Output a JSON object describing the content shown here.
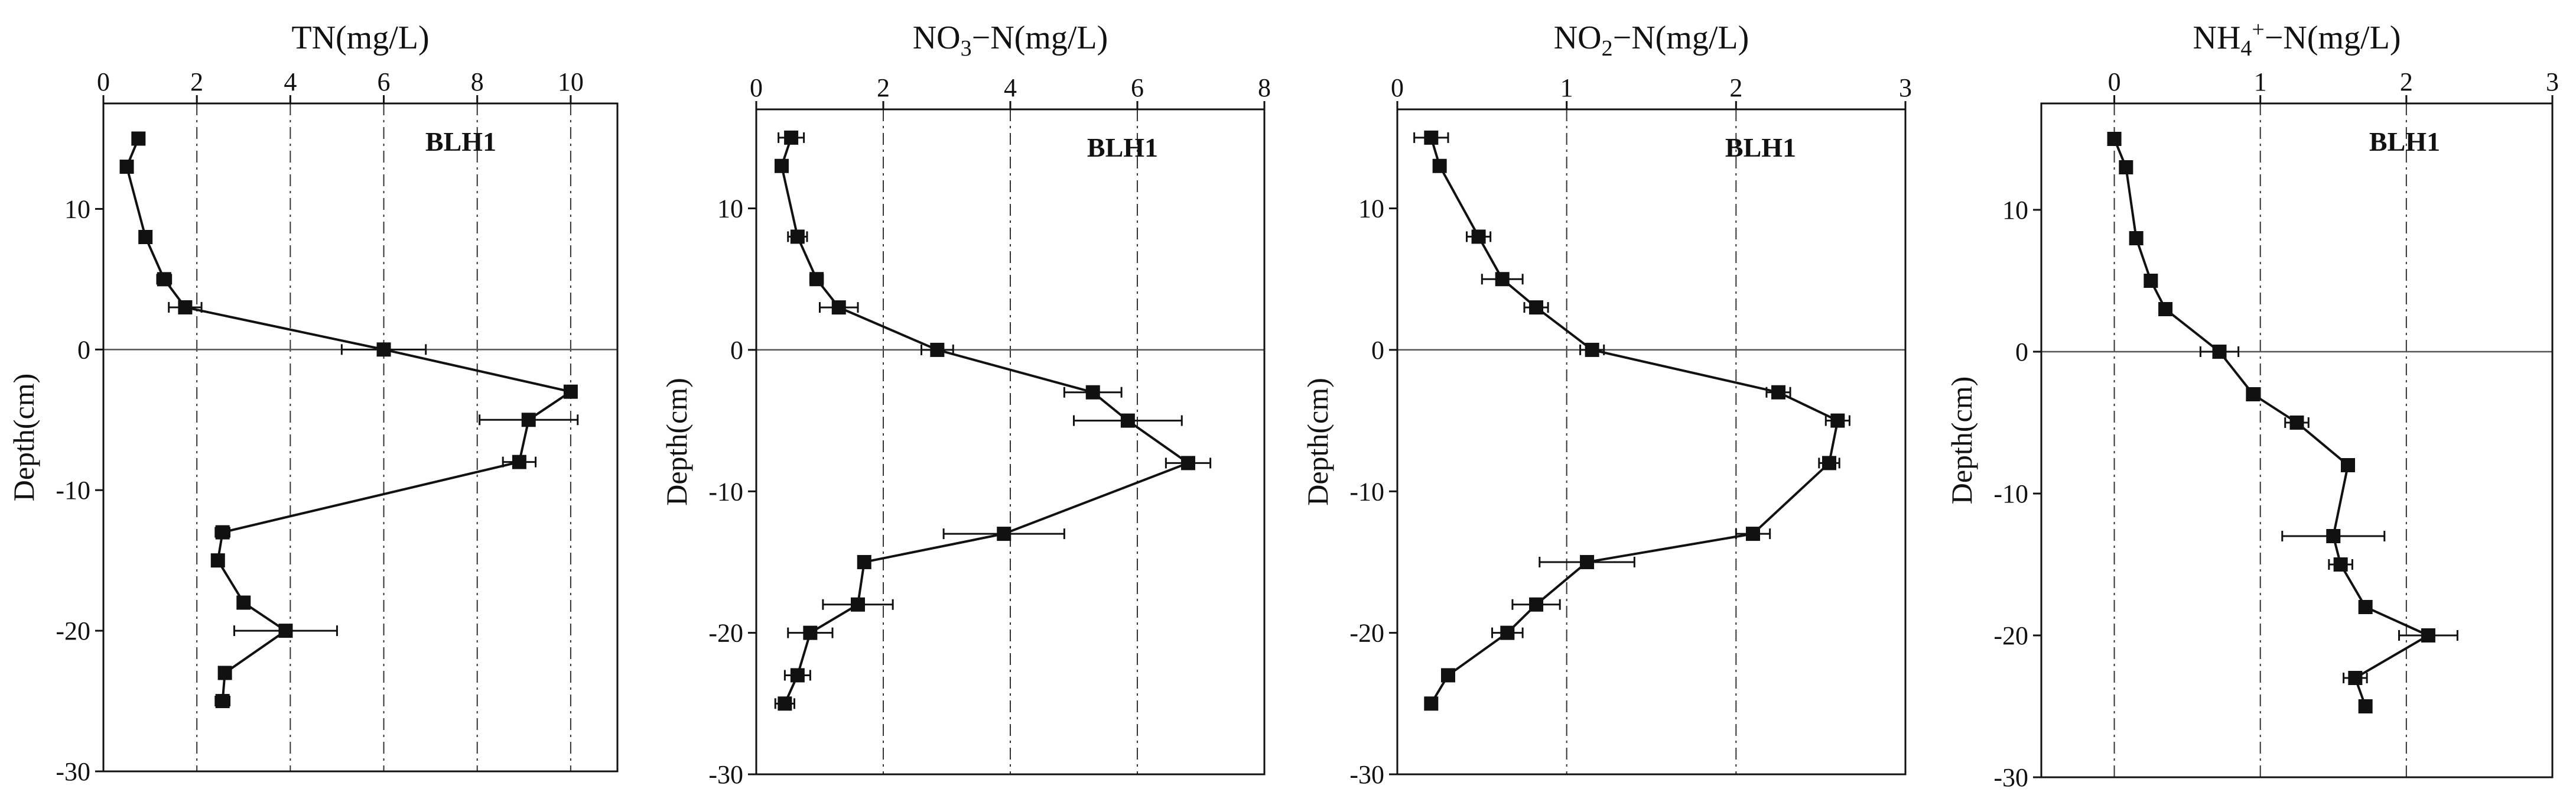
{
  "chart_data": [
    {
      "type": "line",
      "title": "TN(mg/L)",
      "ylabel": "Depth(cm)",
      "label": "BLH1",
      "xlim": [
        0,
        11
      ],
      "ylim": [
        -30,
        17.5
      ],
      "xticks": [
        "0",
        "2",
        "4",
        "6",
        "8",
        "10"
      ],
      "yticks": [
        "10",
        "0",
        "-10",
        "-20",
        "-30"
      ],
      "grid": "vertical dash-dot",
      "points": [
        {
          "depth": 15,
          "x": 0.75,
          "err": 0.1
        },
        {
          "depth": 13,
          "x": 0.5,
          "err": 0
        },
        {
          "depth": 8,
          "x": 0.9,
          "err": 0
        },
        {
          "depth": 5,
          "x": 1.3,
          "err": 0.15
        },
        {
          "depth": 3,
          "x": 1.75,
          "err": 0.35
        },
        {
          "depth": 0,
          "x": 6.0,
          "err": 0.9
        },
        {
          "depth": -3,
          "x": 10.0,
          "err": 0
        },
        {
          "depth": -5,
          "x": 9.1,
          "err": 1.05
        },
        {
          "depth": -8,
          "x": 8.9,
          "err": 0.35
        },
        {
          "depth": -13,
          "x": 2.55,
          "err": 0.15
        },
        {
          "depth": -15,
          "x": 2.45,
          "err": 0.1
        },
        {
          "depth": -18,
          "x": 3.0,
          "err": 0
        },
        {
          "depth": -20,
          "x": 3.9,
          "err": 1.1
        },
        {
          "depth": -23,
          "x": 2.6,
          "err": 0.1
        },
        {
          "depth": -25,
          "x": 2.55,
          "err": 0.15
        }
      ]
    },
    {
      "type": "line",
      "title": "NO3-N(mg/L)",
      "title_main": "NO",
      "title_sub": "3",
      "title_rest": "−N(mg/L)",
      "ylabel": "Depth(cm)",
      "label": "BLH1",
      "xlim": [
        0,
        8
      ],
      "ylim": [
        -30,
        17
      ],
      "xticks": [
        "0",
        "2",
        "4",
        "6",
        "8"
      ],
      "yticks": [
        "10",
        "0",
        "-10",
        "-20",
        "-30"
      ],
      "grid": "vertical dash-dot",
      "points": [
        {
          "depth": 15,
          "x": 0.55,
          "err": 0.2
        },
        {
          "depth": 13,
          "x": 0.4,
          "err": 0
        },
        {
          "depth": 8,
          "x": 0.65,
          "err": 0.15
        },
        {
          "depth": 5,
          "x": 0.95,
          "err": 0.1
        },
        {
          "depth": 3,
          "x": 1.3,
          "err": 0.3
        },
        {
          "depth": 0,
          "x": 2.85,
          "err": 0.25
        },
        {
          "depth": -3,
          "x": 5.3,
          "err": 0.45
        },
        {
          "depth": -5,
          "x": 5.85,
          "err": 0.85
        },
        {
          "depth": -8,
          "x": 6.8,
          "err": 0.35
        },
        {
          "depth": -13,
          "x": 3.9,
          "err": 0.95
        },
        {
          "depth": -15,
          "x": 1.7,
          "err": 0
        },
        {
          "depth": -18,
          "x": 1.6,
          "err": 0.55
        },
        {
          "depth": -20,
          "x": 0.85,
          "err": 0.35
        },
        {
          "depth": -23,
          "x": 0.65,
          "err": 0.2
        },
        {
          "depth": -25,
          "x": 0.45,
          "err": 0.15
        }
      ]
    },
    {
      "type": "line",
      "title": "NO2-N(mg/L)",
      "title_main": "NO",
      "title_sub": "2",
      "title_rest": "−N(mg/L)",
      "ylabel": "Depth(cm)",
      "label": "BLH1",
      "xlim": [
        0,
        3
      ],
      "ylim": [
        -30,
        17
      ],
      "xticks": [
        "0",
        "1",
        "2",
        "3"
      ],
      "yticks": [
        "10",
        "0",
        "-10",
        "-20",
        "-30"
      ],
      "grid": "vertical dash-dot",
      "points": [
        {
          "depth": 15,
          "x": 0.2,
          "err": 0.1
        },
        {
          "depth": 13,
          "x": 0.25,
          "err": 0
        },
        {
          "depth": 8,
          "x": 0.48,
          "err": 0.07
        },
        {
          "depth": 5,
          "x": 0.62,
          "err": 0.12
        },
        {
          "depth": 3,
          "x": 0.82,
          "err": 0.07
        },
        {
          "depth": 0,
          "x": 1.15,
          "err": 0.07
        },
        {
          "depth": -3,
          "x": 2.25,
          "err": 0.07
        },
        {
          "depth": -5,
          "x": 2.6,
          "err": 0.07
        },
        {
          "depth": -8,
          "x": 2.55,
          "err": 0.06
        },
        {
          "depth": -13,
          "x": 2.1,
          "err": 0.1
        },
        {
          "depth": -15,
          "x": 1.12,
          "err": 0.28
        },
        {
          "depth": -18,
          "x": 0.82,
          "err": 0.14
        },
        {
          "depth": -20,
          "x": 0.65,
          "err": 0.09
        },
        {
          "depth": -23,
          "x": 0.3,
          "err": 0
        },
        {
          "depth": -25,
          "x": 0.2,
          "err": 0
        }
      ]
    },
    {
      "type": "line",
      "title": "NH4+-N(mg/L)",
      "title_main": "NH",
      "title_sub": "4",
      "title_sup": "+",
      "title_rest": "−N(mg/L)",
      "ylabel": "Depth(cm)",
      "label": "BLH1",
      "xlim": [
        -0.5,
        3
      ],
      "ylim": [
        -30,
        17.5
      ],
      "xticks": [
        "0",
        "1",
        "2",
        "3"
      ],
      "yticks": [
        "10",
        "0",
        "-10",
        "-20",
        "-30"
      ],
      "grid": "vertical dash-dot",
      "points": [
        {
          "depth": 15,
          "x": 0.0,
          "err": 0
        },
        {
          "depth": 13,
          "x": 0.08,
          "err": 0
        },
        {
          "depth": 8,
          "x": 0.15,
          "err": 0
        },
        {
          "depth": 5,
          "x": 0.25,
          "err": 0
        },
        {
          "depth": 3,
          "x": 0.35,
          "err": 0
        },
        {
          "depth": 0,
          "x": 0.72,
          "err": 0.13
        },
        {
          "depth": -3,
          "x": 0.95,
          "err": 0
        },
        {
          "depth": -5,
          "x": 1.25,
          "err": 0.08
        },
        {
          "depth": -8,
          "x": 1.6,
          "err": 0
        },
        {
          "depth": -13,
          "x": 1.5,
          "err": 0.35
        },
        {
          "depth": -15,
          "x": 1.55,
          "err": 0.08
        },
        {
          "depth": -18,
          "x": 1.72,
          "err": 0
        },
        {
          "depth": -20,
          "x": 2.15,
          "err": 0.2
        },
        {
          "depth": -23,
          "x": 1.65,
          "err": 0.08
        },
        {
          "depth": -25,
          "x": 1.72,
          "err": 0
        }
      ]
    }
  ]
}
